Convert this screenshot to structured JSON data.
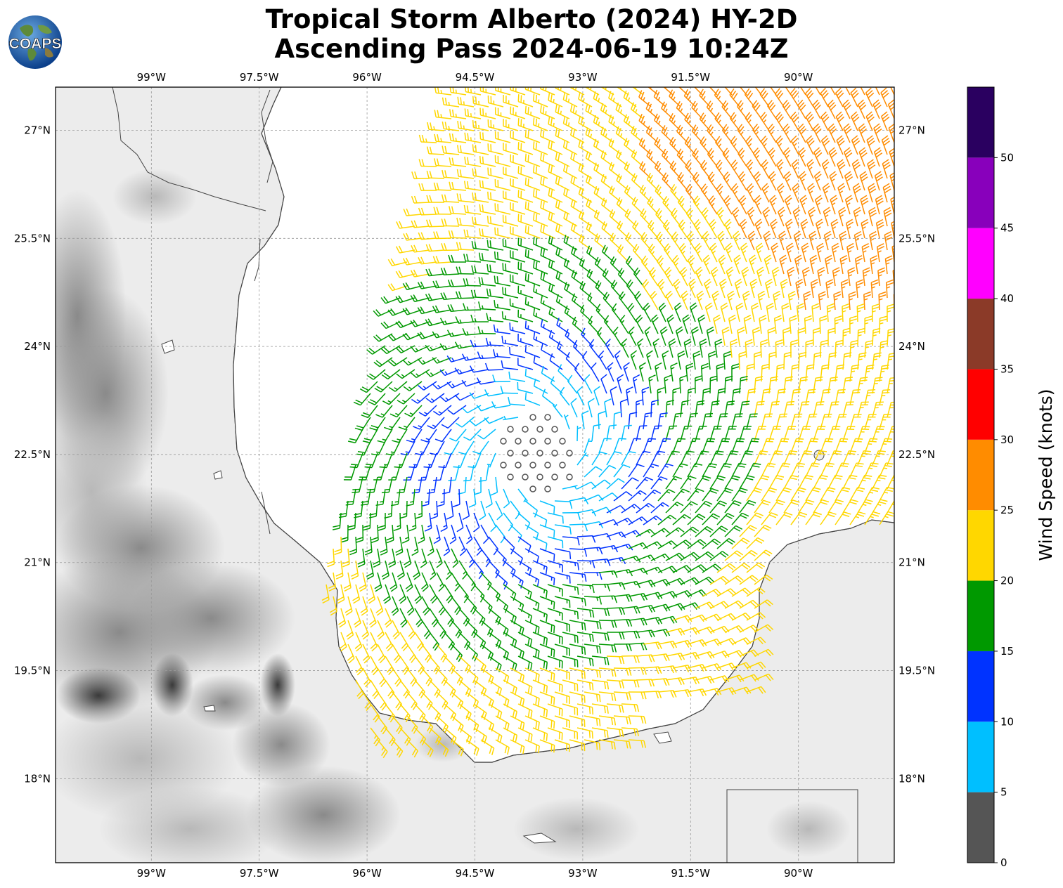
{
  "title": {
    "line1": "Tropical Storm Alberto (2024) HY-2D",
    "line2": "Ascending Pass 2024-06-19 10:24Z"
  },
  "logo": {
    "text": "COAPS",
    "icon": "globe-logo-icon"
  },
  "map": {
    "lon_range": [
      -100.333,
      -88.667
    ],
    "lat_range": [
      16.833,
      27.6
    ],
    "lon_ticks": [
      {
        "value": -99,
        "label": "99°W"
      },
      {
        "value": -97.5,
        "label": "97.5°W"
      },
      {
        "value": -96,
        "label": "96°W"
      },
      {
        "value": -94.5,
        "label": "94.5°W"
      },
      {
        "value": -93,
        "label": "93°W"
      },
      {
        "value": -91.5,
        "label": "91.5°W"
      },
      {
        "value": -90,
        "label": "90°W"
      }
    ],
    "lat_ticks": [
      {
        "value": 27,
        "label": "27°N"
      },
      {
        "value": 25.5,
        "label": "25.5°N"
      },
      {
        "value": 24,
        "label": "24°N"
      },
      {
        "value": 22.5,
        "label": "22.5°N"
      },
      {
        "value": 21,
        "label": "21°N"
      },
      {
        "value": 19.5,
        "label": "19.5°N"
      },
      {
        "value": 18,
        "label": "18°N"
      }
    ],
    "storm_center": {
      "lon": -93.6,
      "lat": 22.5
    },
    "land_color": "#ececec",
    "ocean_color": "#ffffff"
  },
  "colorbar": {
    "label": "Wind Speed (knots)",
    "bins": [
      {
        "min": 0,
        "max": 5,
        "color": "#555555"
      },
      {
        "min": 5,
        "max": 10,
        "color": "#00bfff"
      },
      {
        "min": 10,
        "max": 15,
        "color": "#0033ff"
      },
      {
        "min": 15,
        "max": 20,
        "color": "#009900"
      },
      {
        "min": 20,
        "max": 25,
        "color": "#ffd700"
      },
      {
        "min": 25,
        "max": 30,
        "color": "#ff8c00"
      },
      {
        "min": 30,
        "max": 35,
        "color": "#ff0000"
      },
      {
        "min": 35,
        "max": 40,
        "color": "#8b3a28"
      },
      {
        "min": 40,
        "max": 45,
        "color": "#ff00ff"
      },
      {
        "min": 45,
        "max": 50,
        "color": "#8800bb"
      },
      {
        "min": 50,
        "max": 55,
        "color": "#2a0060"
      }
    ],
    "tick_labels": [
      "0",
      "5",
      "10",
      "15",
      "20",
      "25",
      "30",
      "35",
      "40",
      "45",
      "50"
    ]
  }
}
